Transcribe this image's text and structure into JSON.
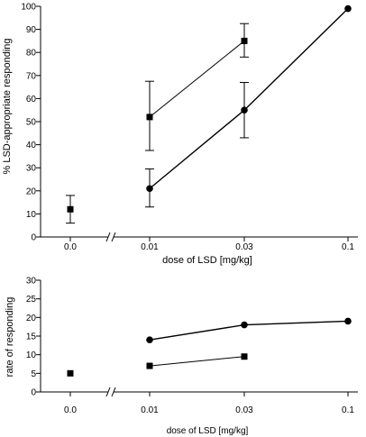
{
  "chart_data": [
    {
      "type": "line",
      "title": "",
      "xlabel": "dose of LSD [mg/kg]",
      "ylabel": "% LSD-appropriate responding",
      "x_ticks": [
        "0.0",
        "0.01",
        "0.03",
        "0.1"
      ],
      "x_scale": "log, broken axis after 0.0",
      "y_ticks": [
        "0",
        "10",
        "20",
        "30",
        "40",
        "50",
        "60",
        "70",
        "80",
        "90",
        "100"
      ],
      "ylim": [
        0,
        100
      ],
      "grid": false,
      "series": [
        {
          "marker": "square",
          "points": [
            {
              "x": 0.0,
              "y": 12,
              "err_low": 6,
              "err_high": 18,
              "connected": false
            },
            {
              "x": 0.01,
              "y": 52,
              "err_low": 37.5,
              "err_high": 67.5,
              "connected": true
            },
            {
              "x": 0.03,
              "y": 85,
              "err_low": 78,
              "err_high": 92.5,
              "connected": true
            }
          ]
        },
        {
          "marker": "circle",
          "points": [
            {
              "x": 0.01,
              "y": 21,
              "err_low": 13,
              "err_high": 29.5,
              "connected": true
            },
            {
              "x": 0.03,
              "y": 55,
              "err_low": 43,
              "err_high": 67,
              "connected": true
            },
            {
              "x": 0.1,
              "y": 99,
              "connected": true
            }
          ]
        }
      ]
    },
    {
      "type": "line",
      "title": "",
      "xlabel": "dose of LSD [mg/kg]",
      "ylabel": "rate of responding",
      "x_ticks": [
        "0.0",
        "0.01",
        "0.03",
        "0.1"
      ],
      "x_scale": "log, broken axis after 0.0",
      "y_ticks": [
        "0",
        "5",
        "10",
        "15",
        "20",
        "25",
        "30"
      ],
      "ylim": [
        0,
        30
      ],
      "grid": false,
      "series": [
        {
          "marker": "circle",
          "points": [
            {
              "x": 0.01,
              "y": 14,
              "connected": true
            },
            {
              "x": 0.03,
              "y": 18,
              "connected": true
            },
            {
              "x": 0.1,
              "y": 19,
              "connected": true
            }
          ]
        },
        {
          "marker": "square",
          "points": [
            {
              "x": 0.0,
              "y": 5,
              "connected": false
            },
            {
              "x": 0.01,
              "y": 7,
              "connected": true
            },
            {
              "x": 0.03,
              "y": 9.5,
              "connected": true
            }
          ]
        }
      ]
    }
  ]
}
